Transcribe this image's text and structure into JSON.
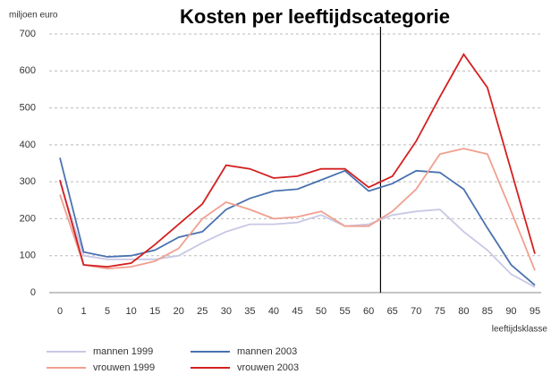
{
  "chart_data": {
    "type": "line",
    "title": "Kosten per leeftijdscategorie",
    "y_label": "miljoen euro",
    "x_label": "leeftijdsklasse",
    "categories": [
      "0",
      "1",
      "5",
      "10",
      "15",
      "20",
      "25",
      "30",
      "35",
      "40",
      "45",
      "50",
      "55",
      "60",
      "65",
      "70",
      "75",
      "80",
      "85",
      "90",
      "95"
    ],
    "ylim": [
      0,
      700
    ],
    "yticks": [
      0,
      100,
      200,
      300,
      400,
      500,
      600,
      700
    ],
    "grid": true,
    "series": [
      {
        "name": "mannen 1999",
        "color": "#c8c8e6",
        "values": [
          300,
          100,
          90,
          90,
          90,
          100,
          135,
          165,
          185,
          185,
          190,
          210,
          180,
          185,
          210,
          220,
          225,
          165,
          115,
          50,
          15
        ]
      },
      {
        "name": "mannen 2003",
        "color": "#4a72b0",
        "values": [
          365,
          110,
          97,
          100,
          115,
          150,
          165,
          225,
          255,
          275,
          280,
          305,
          330,
          275,
          295,
          330,
          325,
          280,
          175,
          75,
          20
        ]
      },
      {
        "name": "vrouwen 1999",
        "color": "#f0a090",
        "values": [
          265,
          75,
          65,
          70,
          85,
          120,
          200,
          245,
          225,
          200,
          205,
          220,
          180,
          180,
          220,
          280,
          375,
          390,
          375,
          220,
          60
        ]
      },
      {
        "name": "vrouwen 2003",
        "color": "#d42020",
        "values": [
          305,
          75,
          70,
          80,
          130,
          185,
          240,
          345,
          335,
          310,
          315,
          335,
          335,
          285,
          315,
          410,
          530,
          645,
          555,
          330,
          105
        ]
      }
    ]
  }
}
